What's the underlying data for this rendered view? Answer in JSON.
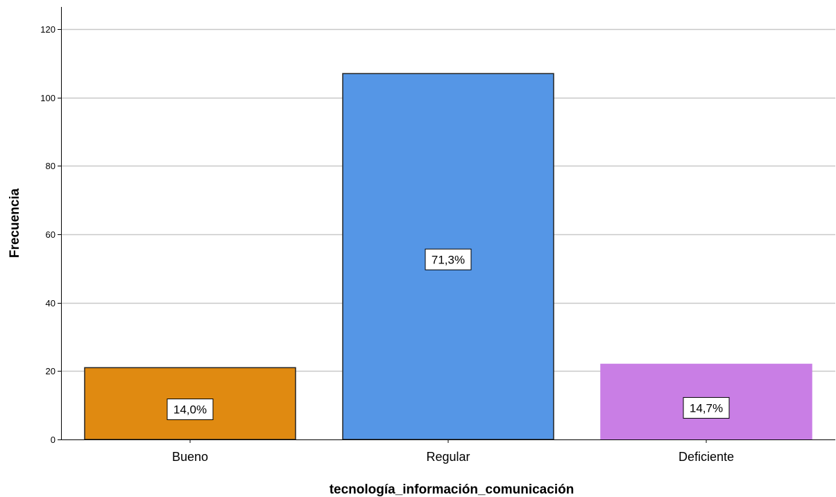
{
  "chart_data": {
    "type": "bar",
    "categories": [
      "Bueno",
      "Regular",
      "Deficiente"
    ],
    "values": [
      21,
      107,
      22
    ],
    "data_labels": [
      "14,0%",
      "71,3%",
      "14,7%"
    ],
    "colors": [
      "#e08a11",
      "#5596e6",
      "#c97ee5"
    ],
    "bar_edge_colors": [
      "#222222",
      "#222222",
      "#c97ee5"
    ],
    "xlabel": "tecnología_información_comunicación",
    "ylabel": "Frecuencia",
    "ylim": [
      0,
      120
    ],
    "yticks": [
      0,
      20,
      40,
      60,
      80,
      100,
      120
    ],
    "grid": true,
    "gridline_color": "#c8c8c8"
  }
}
